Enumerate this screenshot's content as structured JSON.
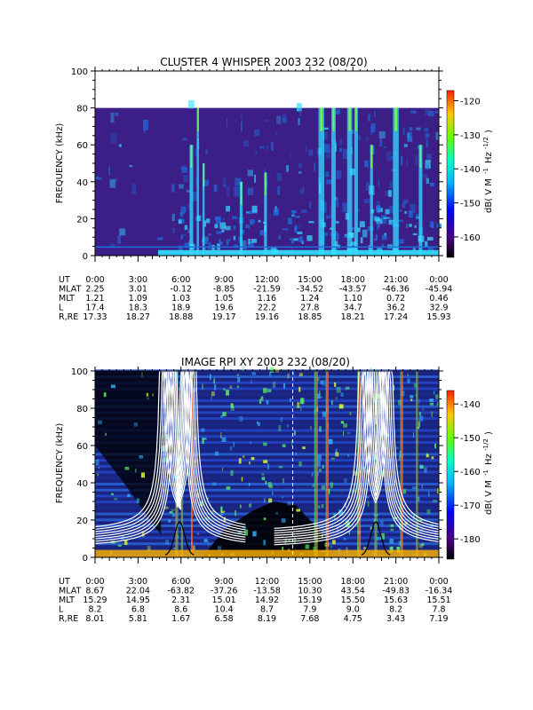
{
  "chart_data": [
    {
      "type": "heatmap",
      "title": "CLUSTER 4 WHISPER 2003 232 (08/20)",
      "ylabel": "FREQUENCY (kHz)",
      "ylim": [
        0,
        100
      ],
      "yticks": [
        "0",
        "20",
        "40",
        "60",
        "80",
        "100"
      ],
      "data_ceiling_khz": 80,
      "colorbar": {
        "label": "dB( V M⁻¹ Hz⁻¹ᐟ²)",
        "label_text": "dB( V M",
        "ticks": [
          "-120",
          "-130",
          "-140",
          "-150",
          "-160"
        ],
        "range": [
          -166,
          -117
        ]
      },
      "time_ticks": [
        "0:00",
        "3:00",
        "6:00",
        "9:00",
        "12:00",
        "15:00",
        "18:00",
        "21:00",
        "0:00"
      ],
      "ephemeris": [
        {
          "label": "UT",
          "values": [
            "0:00",
            "3:00",
            "6:00",
            "9:00",
            "12:00",
            "15:00",
            "18:00",
            "21:00",
            "0:00"
          ]
        },
        {
          "label": "MLAT",
          "values": [
            "2.25",
            "3.01",
            "-0.12",
            "-8.85",
            "-21.59",
            "-34.52",
            "-43.57",
            "-46.36",
            "-45.94"
          ]
        },
        {
          "label": "MLT",
          "values": [
            "1.21",
            "1.09",
            "1.03",
            "1.05",
            "1.16",
            "1.24",
            "1.10",
            "0.72",
            "0.46"
          ]
        },
        {
          "label": "L",
          "values": [
            "17.4",
            "18.3",
            "18.9",
            "19.6",
            "22.2",
            "27.8",
            "34.7",
            "36.2",
            "32.9"
          ]
        },
        {
          "label": "R,RE",
          "values": [
            "17.33",
            "18.27",
            "18.88",
            "19.17",
            "19.16",
            "18.85",
            "18.21",
            "17.24",
            "15.93"
          ]
        }
      ],
      "colors": {
        "background": "#3b1f86",
        "enhanced": "#1e6fe0",
        "bright": "#34e0ff",
        "peak": "#7cff3a"
      }
    },
    {
      "type": "heatmap",
      "title": "IMAGE RPI XY 2003 232 (08/20)",
      "ylabel": "FREQUENCY (kHz)",
      "ylim": [
        0,
        100
      ],
      "yticks": [
        "0",
        "20",
        "40",
        "60",
        "80",
        "100"
      ],
      "colorbar": {
        "label_text": "dB( V M",
        "ticks": [
          "-140",
          "-150",
          "-160",
          "-170",
          "-180"
        ],
        "range": [
          -186,
          -136
        ]
      },
      "time_ticks": [
        "0:00",
        "3:00",
        "6:00",
        "9:00",
        "12:00",
        "15:00",
        "18:00",
        "21:00",
        "0:00"
      ],
      "ephemeris": [
        {
          "label": "UT",
          "values": [
            "0:00",
            "3:00",
            "6:00",
            "9:00",
            "12:00",
            "15:00",
            "18:00",
            "21:00",
            "0:00"
          ]
        },
        {
          "label": "MLAT",
          "values": [
            "8.67",
            "22.04",
            "-63.82",
            "-37.26",
            "-13.58",
            "10.30",
            "43.54",
            "-49.83",
            "-16.34"
          ]
        },
        {
          "label": "MLT",
          "values": [
            "15.29",
            "14.95",
            "2.31",
            "15.01",
            "14.92",
            "15.19",
            "15.50",
            "15.63",
            "15.51"
          ]
        },
        {
          "label": "L",
          "values": [
            "8.2",
            "6.8",
            "8.6",
            "10.4",
            "8.7",
            "7.9",
            "9.0",
            "8.2",
            "7.8"
          ]
        },
        {
          "label": "R,RE",
          "values": [
            "8.01",
            "5.81",
            "1.67",
            "6.58",
            "8.19",
            "7.68",
            "4.75",
            "3.43",
            "7.19"
          ]
        }
      ],
      "colors": {
        "background": "#1a237e",
        "quiet": "#000000",
        "moderate": "#2fb6ff",
        "enhanced": "#64ff64",
        "peak": "#ff3c1e",
        "overlay": "#ffffff"
      }
    }
  ]
}
